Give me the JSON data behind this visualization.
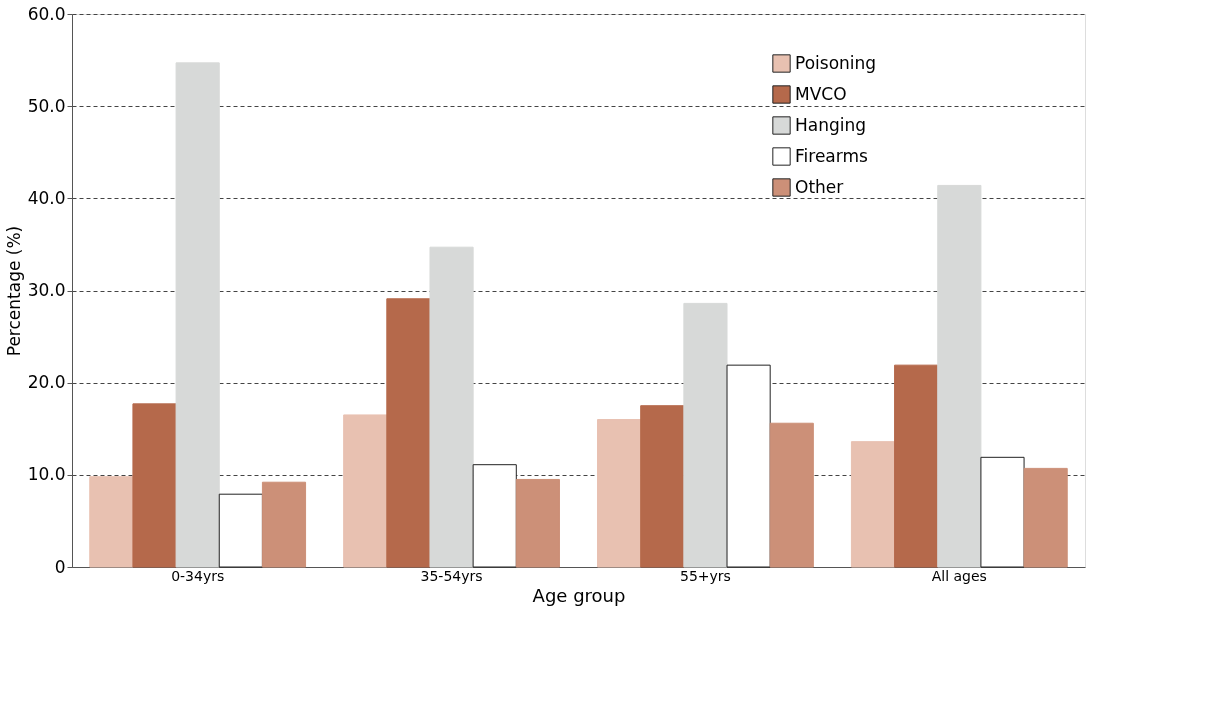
{
  "chart_data": {
    "type": "bar",
    "xlabel": "Age group",
    "ylabel": "Percentage (%)",
    "categories": [
      "0-34yrs",
      "35-54yrs",
      "55+yrs",
      "All ages"
    ],
    "series": [
      {
        "name": "Poisoning",
        "color": "#e8c1b1",
        "values": [
          9.8,
          16.5,
          16.0,
          13.6
        ]
      },
      {
        "name": "MVCO",
        "color": "#b5694b",
        "values": [
          17.7,
          29.1,
          17.5,
          21.9
        ]
      },
      {
        "name": "Hanging",
        "color": "#d7d9d8",
        "values": [
          54.7,
          34.7,
          28.6,
          41.4
        ]
      },
      {
        "name": "Firearms",
        "color": "#ffffff",
        "values": [
          7.9,
          11.1,
          21.9,
          11.9
        ]
      },
      {
        "name": "Other",
        "color": "#cc9078",
        "values": [
          9.2,
          9.5,
          15.6,
          10.7
        ]
      }
    ],
    "ylim": [
      0,
      60
    ],
    "yticks": [
      0,
      {
        "value": 10,
        "label": "10.0"
      },
      {
        "value": 20,
        "label": "20.0"
      },
      {
        "value": 30,
        "label": "30.0"
      },
      {
        "value": 40,
        "label": "40.0"
      },
      {
        "value": 50,
        "label": "50.0"
      },
      {
        "value": 60,
        "label": "60.0"
      }
    ],
    "grid": "y",
    "legend": "top right"
  }
}
